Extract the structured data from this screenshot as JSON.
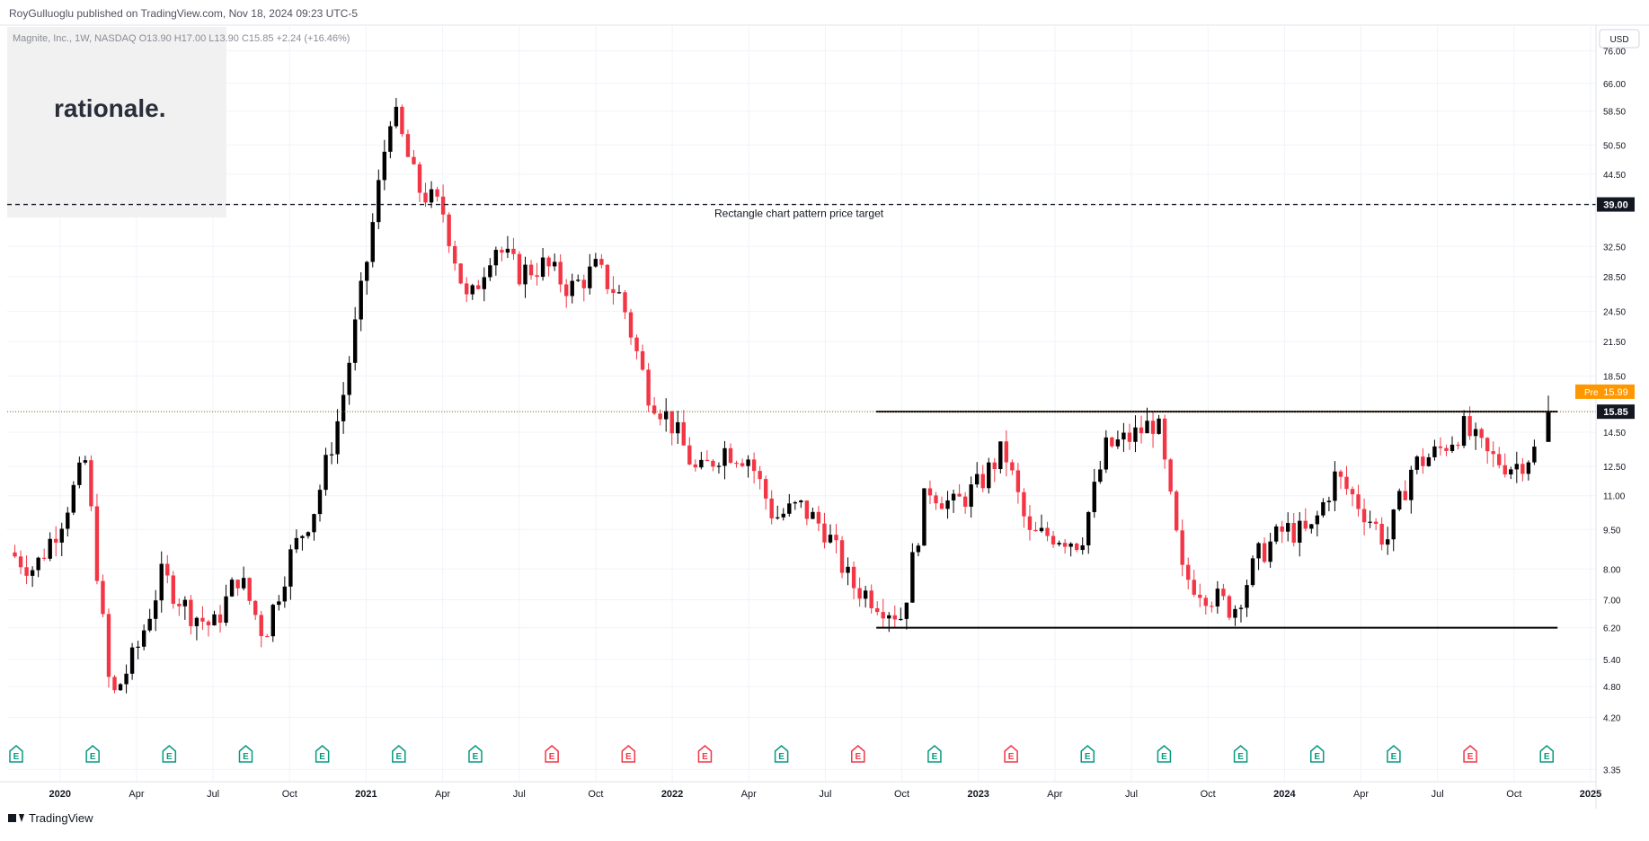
{
  "header": {
    "publisher": "RoyGulluoglu published on TradingView.com, Nov 18, 2024 09:23 UTC-5",
    "symbol_line": "Magnite, Inc., 1W, NASDAQ  O13.90  H17.00  L13.90  C15.85  +2.24 (+16.46%)"
  },
  "watermark": {
    "text": "rationale."
  },
  "footer": {
    "brand": "TradingView",
    "logo_glyph": "17"
  },
  "currency_label": "USD",
  "colors": {
    "up": "#000000",
    "down": "#f23645",
    "grid": "#f0f3fa",
    "axis_text": "#131722",
    "earnings_green": "#089981",
    "earnings_red": "#f23645",
    "pre_badge": "#ff9800"
  },
  "chart_data": {
    "type": "candlestick",
    "title": "Magnite, Inc., 1W, NASDAQ",
    "scale": "log",
    "ylim": [
      3.2,
      85
    ],
    "y_ticks": [
      "76.00",
      "66.00",
      "58.50",
      "50.50",
      "44.50",
      "39.00",
      "32.50",
      "28.50",
      "24.50",
      "21.50",
      "18.50",
      "15.85",
      "14.50",
      "12.50",
      "11.00",
      "9.50",
      "8.00",
      "7.00",
      "6.20",
      "5.40",
      "4.80",
      "4.20",
      "3.35"
    ],
    "x_ticks": [
      "2020",
      "Apr",
      "Jul",
      "Oct",
      "2021",
      "Apr",
      "Jul",
      "Oct",
      "2022",
      "Apr",
      "Jul",
      "Oct",
      "2023",
      "Apr",
      "Jul",
      "Oct",
      "2024",
      "Apr",
      "Jul",
      "Oct",
      "2025"
    ],
    "last_close": 15.85,
    "pre_market": {
      "label": "Pre",
      "value": "15.99"
    },
    "target_label_value": "39.00",
    "annotations": [
      {
        "type": "horizontal_dashed",
        "price": 39.0,
        "text": "Rectangle chart pattern price target"
      },
      {
        "type": "horizontal_line",
        "price": 15.85,
        "from": "2022-09",
        "to": "2024-11"
      },
      {
        "type": "horizontal_line",
        "price": 6.2,
        "from": "2022-09",
        "to": "2024-11"
      }
    ],
    "earnings": [
      {
        "date": "2019-11",
        "type": "E",
        "color": "green"
      },
      {
        "date": "2020-02",
        "type": "E",
        "color": "green"
      },
      {
        "date": "2020-05",
        "type": "E",
        "color": "green"
      },
      {
        "date": "2020-08",
        "type": "E",
        "color": "green"
      },
      {
        "date": "2020-11",
        "type": "E",
        "color": "green"
      },
      {
        "date": "2021-02",
        "type": "E",
        "color": "green"
      },
      {
        "date": "2021-05",
        "type": "E",
        "color": "green"
      },
      {
        "date": "2021-08",
        "type": "E",
        "color": "red"
      },
      {
        "date": "2021-11",
        "type": "E",
        "color": "red"
      },
      {
        "date": "2022-02",
        "type": "E",
        "color": "red"
      },
      {
        "date": "2022-05",
        "type": "E",
        "color": "green"
      },
      {
        "date": "2022-08",
        "type": "E",
        "color": "red"
      },
      {
        "date": "2022-11",
        "type": "E",
        "color": "green"
      },
      {
        "date": "2023-02",
        "type": "E",
        "color": "red"
      },
      {
        "date": "2023-05",
        "type": "E",
        "color": "green"
      },
      {
        "date": "2023-08",
        "type": "E",
        "color": "green"
      },
      {
        "date": "2023-11",
        "type": "E",
        "color": "green"
      },
      {
        "date": "2024-02",
        "type": "E",
        "color": "green"
      },
      {
        "date": "2024-05",
        "type": "E",
        "color": "green"
      },
      {
        "date": "2024-08",
        "type": "E",
        "color": "red"
      },
      {
        "date": "2024-11",
        "type": "E",
        "color": "green"
      }
    ],
    "path": [
      {
        "date": "2019-11",
        "price": 8.6
      },
      {
        "date": "2019-12",
        "price": 8.0
      },
      {
        "date": "2020-01",
        "price": 9.8
      },
      {
        "date": "2020-02",
        "price": 12.8
      },
      {
        "date": "2020-03",
        "price": 4.5
      },
      {
        "date": "2020-04",
        "price": 5.6
      },
      {
        "date": "2020-05",
        "price": 7.8
      },
      {
        "date": "2020-06",
        "price": 6.7
      },
      {
        "date": "2020-07",
        "price": 6.2
      },
      {
        "date": "2020-08",
        "price": 7.8
      },
      {
        "date": "2020-09",
        "price": 6.0
      },
      {
        "date": "2020-10",
        "price": 8.4
      },
      {
        "date": "2020-11",
        "price": 10.5
      },
      {
        "date": "2020-12",
        "price": 16.0
      },
      {
        "date": "2021-01",
        "price": 30.0
      },
      {
        "date": "2021-02",
        "price": 60.0
      },
      {
        "date": "2021-03",
        "price": 42.0
      },
      {
        "date": "2021-04",
        "price": 38.0
      },
      {
        "date": "2021-05",
        "price": 25.0
      },
      {
        "date": "2021-06",
        "price": 33.0
      },
      {
        "date": "2021-07",
        "price": 29.0
      },
      {
        "date": "2021-08",
        "price": 30.0
      },
      {
        "date": "2021-09",
        "price": 27.0
      },
      {
        "date": "2021-10",
        "price": 29.5
      },
      {
        "date": "2021-11",
        "price": 26.0
      },
      {
        "date": "2021-12",
        "price": 17.5
      },
      {
        "date": "2022-01",
        "price": 15.0
      },
      {
        "date": "2022-02",
        "price": 12.0
      },
      {
        "date": "2022-03",
        "price": 13.5
      },
      {
        "date": "2022-04",
        "price": 13.0
      },
      {
        "date": "2022-05",
        "price": 10.0
      },
      {
        "date": "2022-06",
        "price": 10.5
      },
      {
        "date": "2022-07",
        "price": 9.5
      },
      {
        "date": "2022-08",
        "price": 7.5
      },
      {
        "date": "2022-09",
        "price": 7.0
      },
      {
        "date": "2022-10",
        "price": 6.5
      },
      {
        "date": "2022-11",
        "price": 11.5
      },
      {
        "date": "2022-12",
        "price": 10.5
      },
      {
        "date": "2023-01",
        "price": 11.5
      },
      {
        "date": "2023-02",
        "price": 13.5
      },
      {
        "date": "2023-03",
        "price": 9.2
      },
      {
        "date": "2023-04",
        "price": 9.3
      },
      {
        "date": "2023-05",
        "price": 9.0
      },
      {
        "date": "2023-06",
        "price": 13.5
      },
      {
        "date": "2023-07",
        "price": 14.2
      },
      {
        "date": "2023-08",
        "price": 15.3
      },
      {
        "date": "2023-09",
        "price": 7.8
      },
      {
        "date": "2023-10",
        "price": 7.2
      },
      {
        "date": "2023-11",
        "price": 6.7
      },
      {
        "date": "2023-12",
        "price": 8.5
      },
      {
        "date": "2024-01",
        "price": 9.5
      },
      {
        "date": "2024-02",
        "price": 9.3
      },
      {
        "date": "2024-03",
        "price": 12.0
      },
      {
        "date": "2024-04",
        "price": 10.5
      },
      {
        "date": "2024-05",
        "price": 9.0
      },
      {
        "date": "2024-06",
        "price": 12.5
      },
      {
        "date": "2024-07",
        "price": 13.3
      },
      {
        "date": "2024-08",
        "price": 14.8
      },
      {
        "date": "2024-09",
        "price": 13.0
      },
      {
        "date": "2024-10",
        "price": 12.5
      },
      {
        "date": "2024-11",
        "price": 13.6
      }
    ]
  }
}
